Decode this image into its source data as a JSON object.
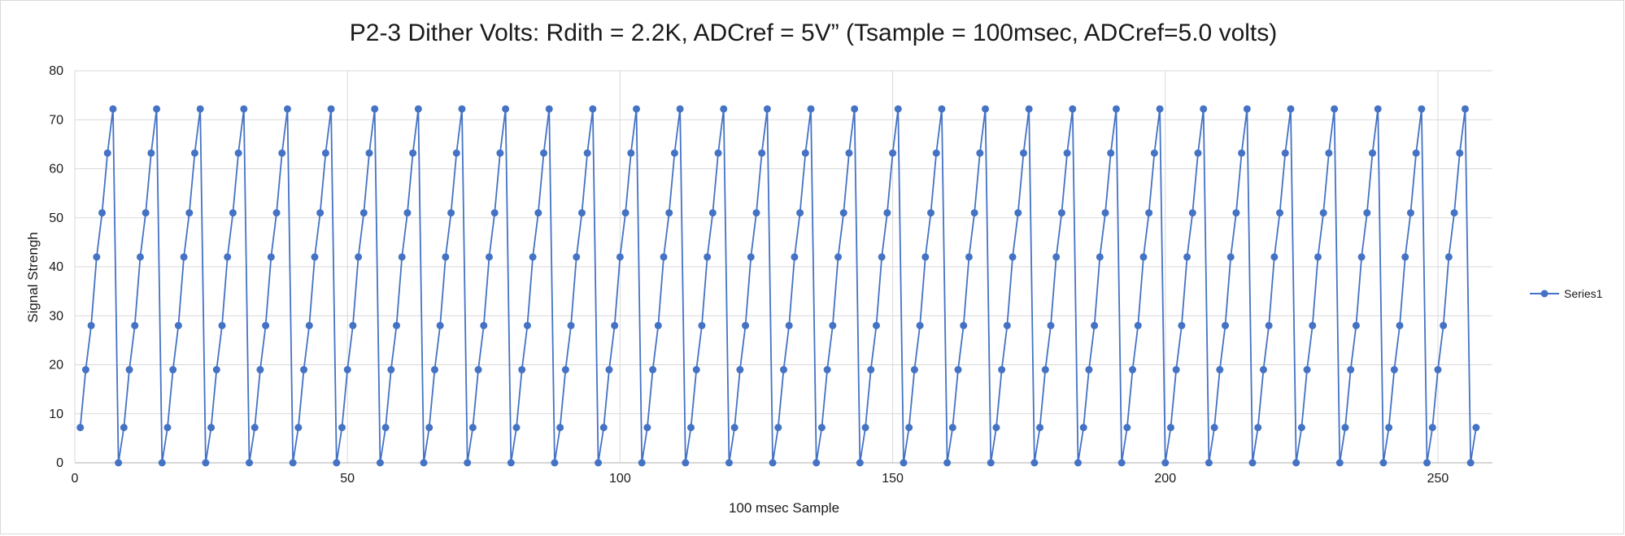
{
  "chart_data": {
    "type": "line",
    "title": "P2-3 Dither Volts: Rdith = 2.2K, ADCref = 5V” (Tsample = 100msec, ADCref=5.0 volts)",
    "xlabel": "100 msec Sample",
    "ylabel": "Signal Strengh",
    "xlim": [
      0,
      260
    ],
    "ylim": [
      0,
      80
    ],
    "x_ticks": [
      0,
      50,
      100,
      150,
      200,
      250
    ],
    "y_ticks": [
      0,
      10,
      20,
      30,
      40,
      50,
      60,
      70,
      80
    ],
    "grid": true,
    "legend_position": "right",
    "marker": "circle",
    "period": 8,
    "cycle_values": [
      0,
      7.2,
      19,
      28,
      42,
      51,
      63.2,
      72.2
    ],
    "series": [
      {
        "name": "Series1",
        "color": "#4472C4",
        "x_start": 1,
        "x_end": 257
      }
    ]
  }
}
